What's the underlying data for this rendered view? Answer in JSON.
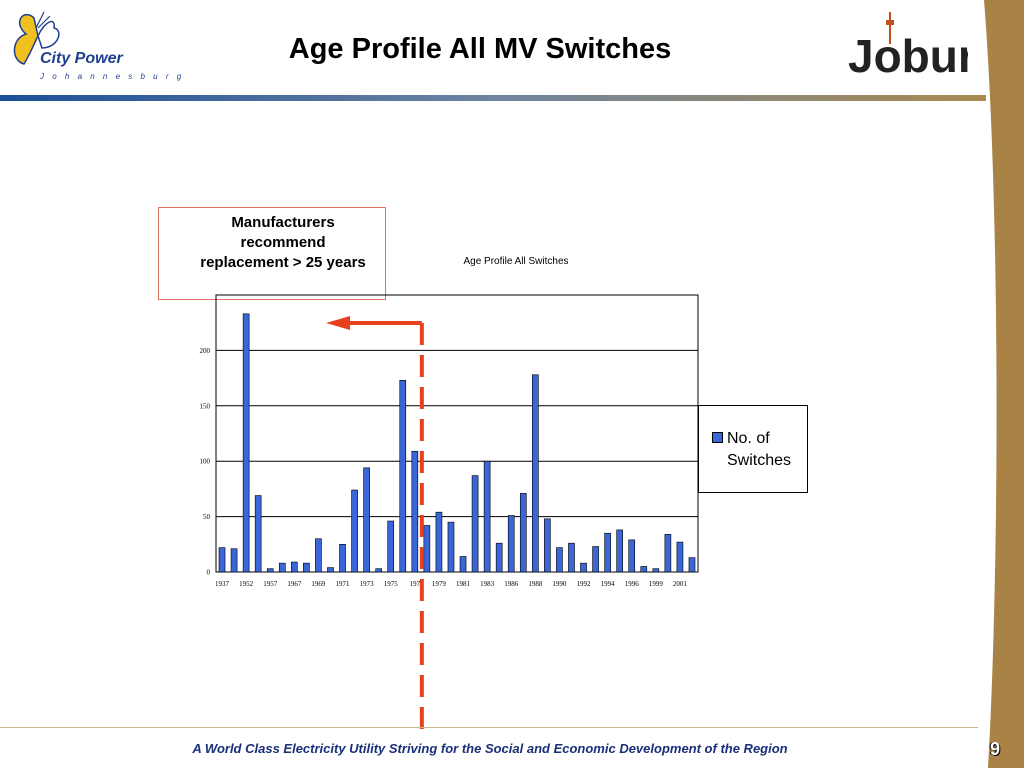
{
  "header": {
    "title": "Age Profile All MV Switches",
    "left_logo": {
      "name": "City Power",
      "subtitle": "J o h a n n e s b u r g",
      "icon": "butterfly-icon"
    },
    "right_logo": {
      "text": "Joburg",
      "icon": "hillbrow-tower-icon"
    }
  },
  "callout": {
    "line1": "Manufacturers",
    "line2": "recommend",
    "line3": "replacement > 25 years"
  },
  "footer": {
    "tagline": "A World Class Electricity Utility Striving for the Social and Economic Development of the Region",
    "page_number": "9"
  },
  "colors": {
    "bar": "#3a66d8",
    "marker": "#e8401c",
    "header_rule_start": "#1b4f9a",
    "side_band": "#a88345",
    "footer_text": "#1a2f7a"
  },
  "chart_data": {
    "type": "bar",
    "title": "Age Profile All Switches",
    "series": [
      {
        "name": "No. of Switches",
        "values": [
          22,
          21,
          233,
          69,
          3,
          8,
          9,
          8,
          30,
          4,
          25,
          74,
          94,
          3,
          46,
          173,
          109,
          42,
          54,
          45,
          14,
          87,
          100,
          26,
          51,
          71,
          178,
          48,
          22,
          26,
          8,
          23,
          35,
          38,
          29,
          5,
          3,
          34,
          27,
          13
        ]
      }
    ],
    "categories_count": 40,
    "tick_labels": [
      "1937",
      "1952",
      "1957",
      "1967",
      "1969",
      "1971",
      "1973",
      "1975",
      "197",
      "1979",
      "1981",
      "1983",
      "1986",
      "1988",
      "1990",
      "1992",
      "1994",
      "1996",
      "1999",
      "2001"
    ],
    "ylim": [
      0,
      250
    ],
    "yticks": [
      0,
      50,
      100,
      150,
      200
    ],
    "grid": true,
    "legend": "right",
    "annotation": {
      "type": "dashed-vertical-line-with-arrow",
      "label_ref": "callout",
      "after_category_index": 16
    }
  }
}
